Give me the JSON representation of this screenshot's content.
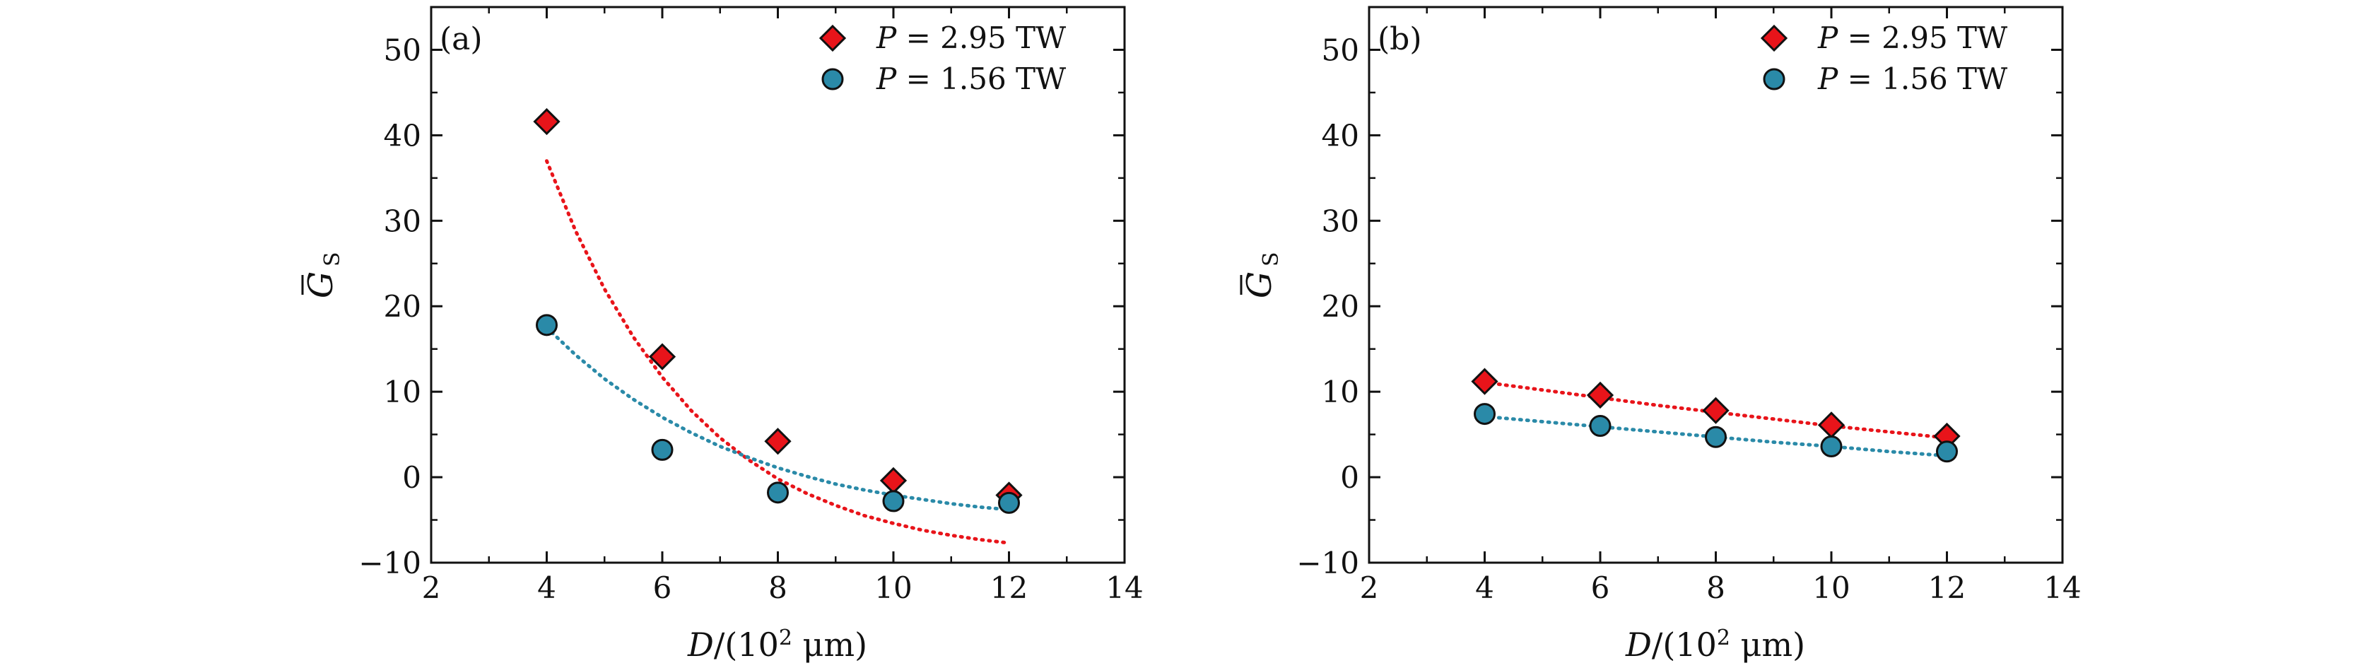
{
  "figure": {
    "title": "",
    "colors": {
      "red": "#e8141a",
      "teal": "#2a8aa8",
      "edge": "#111111"
    }
  },
  "chart_data": [
    {
      "type": "scatter",
      "panel_label": "(a)",
      "xlabel": "D/(10² μm)",
      "ylabel": "G̅S",
      "ylabel_main": "G",
      "ylabel_sub": "S",
      "xlim": [
        2,
        14
      ],
      "ylim": [
        -10,
        55
      ],
      "xticks": [
        2,
        4,
        6,
        8,
        10,
        12,
        14
      ],
      "yticks": [
        -10,
        0,
        10,
        20,
        30,
        40,
        50
      ],
      "xtick_labels": [
        "2",
        "4",
        "6",
        "8",
        "10",
        "12",
        "14"
      ],
      "ytick_labels": [
        "−10",
        "0",
        "10",
        "20",
        "30",
        "40",
        "50"
      ],
      "legend_position": "top-right",
      "series": [
        {
          "name": "P = 2.95 TW",
          "legend_label": "P = 2.95 TW",
          "legend_italic": "P",
          "legend_rest": " = 2.95 TW",
          "marker": "diamond",
          "color": "#e8141a",
          "x": [
            4,
            6,
            8,
            10,
            12
          ],
          "y": [
            41.6,
            14.1,
            4.2,
            -0.4,
            -2.1
          ],
          "fit": {
            "x": [
              4,
              4.5,
              5,
              5.5,
              6,
              6.5,
              7,
              7.5,
              8,
              8.5,
              9,
              9.5,
              10,
              10.5,
              11,
              11.5,
              12
            ],
            "y": [
              37,
              28.8,
              22.0,
              16.4,
              11.7,
              7.8,
              4.6,
              2.0,
              -0.2,
              -1.9,
              -3.3,
              -4.5,
              -5.4,
              -6.2,
              -6.8,
              -7.3,
              -7.7
            ]
          }
        },
        {
          "name": "P = 1.56 TW",
          "legend_label": "P = 1.56 TW",
          "legend_italic": "P",
          "legend_rest": " = 1.56 TW",
          "marker": "circle",
          "color": "#2a8aa8",
          "x": [
            4,
            6,
            8,
            10,
            12
          ],
          "y": [
            17.8,
            3.2,
            -1.8,
            -2.8,
            -3.0
          ],
          "fit": {
            "x": [
              4,
              4.5,
              5,
              5.5,
              6,
              6.5,
              7,
              7.5,
              8,
              8.5,
              9,
              9.5,
              10,
              10.5,
              11,
              11.5,
              12
            ],
            "y": [
              17.5,
              14.3,
              11.5,
              9.1,
              7.0,
              5.2,
              3.6,
              2.3,
              1.1,
              0.1,
              -0.8,
              -1.5,
              -2.1,
              -2.6,
              -3.1,
              -3.5,
              -3.8
            ]
          }
        }
      ]
    },
    {
      "type": "scatter",
      "panel_label": "(b)",
      "xlabel": "D/(10² μm)",
      "ylabel": "G̅S",
      "ylabel_main": "G",
      "ylabel_sub": "S",
      "xlim": [
        2,
        14
      ],
      "ylim": [
        -10,
        55
      ],
      "xticks": [
        2,
        4,
        6,
        8,
        10,
        12,
        14
      ],
      "yticks": [
        -10,
        0,
        10,
        20,
        30,
        40,
        50
      ],
      "xtick_labels": [
        "2",
        "4",
        "6",
        "8",
        "10",
        "12",
        "14"
      ],
      "ytick_labels": [
        "−10",
        "0",
        "10",
        "20",
        "30",
        "40",
        "50"
      ],
      "legend_position": "top-right",
      "series": [
        {
          "name": "P = 2.95 TW",
          "legend_label": "P = 2.95 TW",
          "legend_italic": "P",
          "legend_rest": " = 2.95 TW",
          "marker": "diamond",
          "color": "#e8141a",
          "x": [
            4,
            6,
            8,
            10,
            12
          ],
          "y": [
            11.2,
            9.6,
            7.8,
            6.1,
            4.8
          ],
          "fit": {
            "x": [
              4,
              5,
              6,
              7,
              8,
              9,
              10,
              11,
              12
            ],
            "y": [
              11.1,
              10.2,
              9.3,
              8.4,
              7.6,
              6.8,
              6.0,
              5.3,
              4.6
            ]
          }
        },
        {
          "name": "P = 1.56 TW",
          "legend_label": "P = 1.56 TW",
          "legend_italic": "P",
          "legend_rest": " = 1.56 TW",
          "marker": "circle",
          "color": "#2a8aa8",
          "x": [
            4,
            6,
            8,
            10,
            12
          ],
          "y": [
            7.4,
            6.0,
            4.7,
            3.6,
            3.0
          ],
          "fit": {
            "x": [
              4,
              5,
              6,
              7,
              8,
              9,
              10,
              11,
              12
            ],
            "y": [
              7.1,
              6.5,
              5.9,
              5.3,
              4.7,
              4.1,
              3.6,
              3.0,
              2.5
            ]
          }
        }
      ]
    }
  ]
}
